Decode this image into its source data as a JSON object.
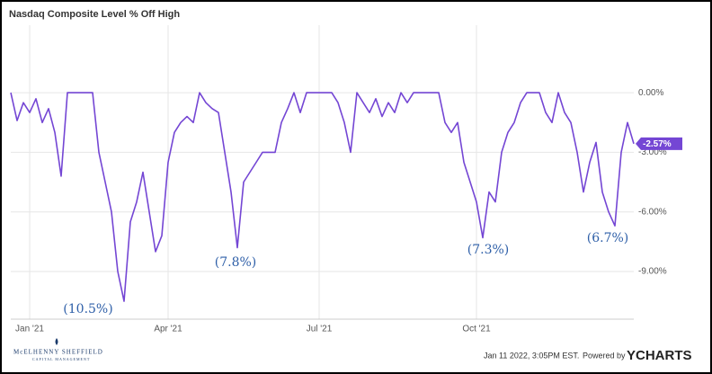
{
  "chart_data": {
    "type": "line",
    "title": "Nasdaq Composite Level % Off High",
    "categories": [
      null,
      null,
      null,
      "Jan '21",
      null,
      null,
      null,
      null,
      null,
      null,
      null,
      null,
      null,
      null,
      null,
      null,
      null,
      null,
      null,
      null,
      null,
      null,
      null,
      null,
      null,
      "Apr '21",
      null,
      null,
      null,
      null,
      null,
      null,
      null,
      null,
      null,
      null,
      null,
      null,
      null,
      null,
      null,
      null,
      null,
      null,
      null,
      null,
      null,
      null,
      null,
      "Jul '21",
      null,
      null,
      null,
      null,
      null,
      null,
      null,
      null,
      null,
      null,
      null,
      null,
      null,
      null,
      null,
      null,
      null,
      null,
      null,
      null,
      null,
      null,
      null,
      null,
      "Oct '21",
      null,
      null,
      null,
      null,
      null,
      null,
      null,
      null,
      null,
      null,
      null,
      null,
      null,
      null,
      null,
      null,
      null,
      null,
      null,
      null,
      null,
      null,
      null,
      null,
      null
    ],
    "series": [
      {
        "name": "Nasdaq Composite Level % Off High",
        "color": "#7446d4",
        "values": [
          0,
          -1.4,
          -0.5,
          -1.0,
          -0.3,
          -1.5,
          -0.8,
          -2.0,
          -4.2,
          0,
          0,
          0,
          0,
          0,
          -3,
          -4.5,
          -6,
          -9,
          -10.5,
          -6.5,
          -5.5,
          -4,
          -6,
          -8,
          -7.2,
          -3.5,
          -2,
          -1.5,
          -1.2,
          -1.5,
          0,
          -0.5,
          -0.8,
          -1,
          -3,
          -5,
          -7.8,
          -4.5,
          -4,
          -3.5,
          -3,
          -3,
          -3,
          -1.5,
          -0.8,
          0,
          -1,
          0,
          0,
          0,
          0,
          0,
          -0.5,
          -1.5,
          -3,
          0,
          -0.5,
          -1,
          -0.3,
          -1.2,
          -0.5,
          -1,
          0,
          -0.5,
          0,
          0,
          0,
          0,
          0,
          -1.5,
          -2,
          -1.5,
          -3.5,
          -4.5,
          -5.5,
          -7.3,
          -5,
          -5.5,
          -3,
          -2,
          -1.5,
          -0.5,
          0,
          0,
          0,
          -1,
          -1.5,
          0,
          -1,
          -1.5,
          -3,
          -5,
          -3.5,
          -2.5,
          -5,
          -6,
          -6.7,
          -3,
          -1.5,
          -2.57
        ],
        "value_labels": [
          null,
          null,
          null,
          null,
          null,
          null,
          null,
          null,
          null,
          null,
          null,
          null,
          null,
          null,
          null,
          null,
          null,
          null,
          null,
          null,
          null,
          null,
          null,
          null,
          null,
          null,
          null,
          null,
          null,
          null,
          null,
          null,
          null,
          null,
          null,
          null,
          null,
          null,
          null,
          null,
          null,
          null,
          null,
          null,
          null,
          null,
          null,
          null,
          null,
          null,
          null,
          null,
          null,
          null,
          null,
          null,
          null,
          null,
          null,
          null,
          null,
          null,
          null,
          null,
          null,
          null,
          null,
          null,
          null,
          null,
          null,
          null,
          null,
          null,
          null,
          null,
          null,
          null,
          null,
          null,
          null,
          null,
          null,
          null,
          null,
          null,
          null,
          null,
          null,
          null,
          null,
          null,
          null,
          null,
          null,
          null,
          null,
          null,
          null,
          "-2.57%"
        ]
      }
    ],
    "ylim": [
      -11.4,
      3.4
    ],
    "yticks": [
      {
        "value": 0,
        "label": "0.00%"
      },
      {
        "value": -3,
        "label": "-3.00%"
      },
      {
        "value": -6,
        "label": "-6.00%"
      },
      {
        "value": -9,
        "label": "-9.00%"
      }
    ],
    "grid": true,
    "annotations": [
      "(10.5%)",
      "(7.8%)",
      "(7.3%)",
      "(6.7%)"
    ]
  },
  "footer": {
    "timestamp": "Jan 11 2022, 3:05PM EST.",
    "powered_by": "Powered by",
    "brand": "YCHARTS",
    "logo_name": "McELHENNY SHEFFIELD",
    "logo_sub": "CAPITAL MANAGEMENT"
  }
}
